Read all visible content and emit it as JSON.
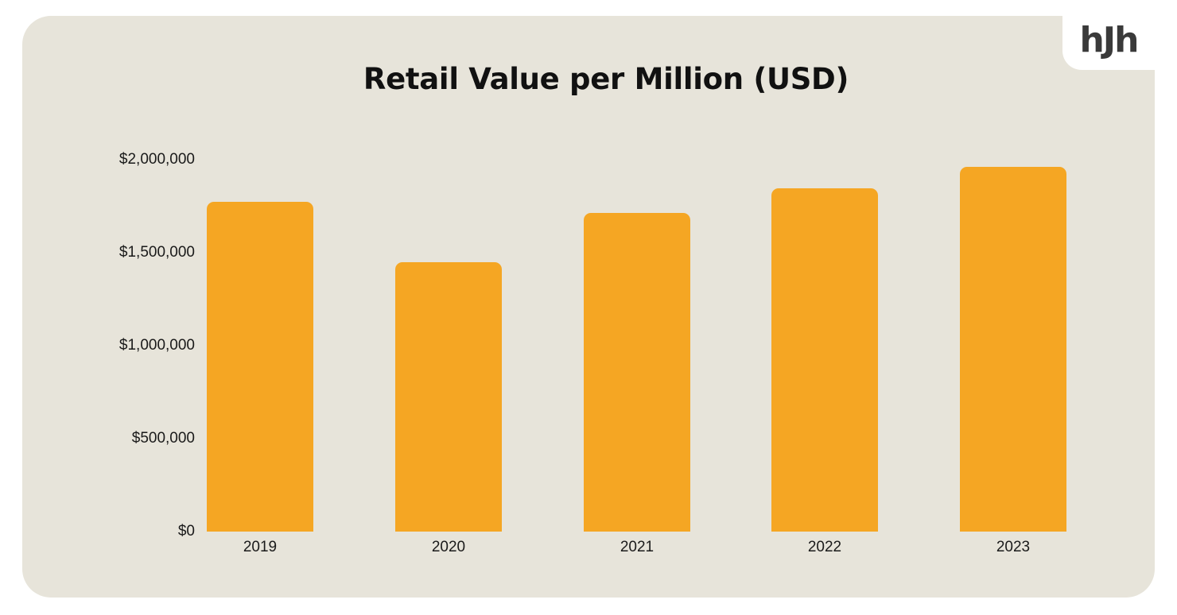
{
  "logo": {
    "text": "hJh",
    "color": "#3a3a3a"
  },
  "colors": {
    "background": "#e7e4da",
    "bar": "#f5a623",
    "text": "#1a1a1a"
  },
  "chart_data": {
    "type": "bar",
    "title": "Retail Value per Million (USD)",
    "xlabel": "",
    "ylabel": "",
    "categories": [
      "2019",
      "2020",
      "2021",
      "2022",
      "2023"
    ],
    "values": [
      1775000,
      1450000,
      1715000,
      1845000,
      1960000
    ],
    "yticks": [
      0,
      500000,
      1000000,
      1500000,
      2000000
    ],
    "ytick_labels": [
      "$0",
      "$500,000",
      "$1,000,000",
      "$1,500,000",
      "$2,000,000"
    ],
    "ylim": [
      0,
      2000000
    ],
    "grid": false,
    "legend": null
  }
}
